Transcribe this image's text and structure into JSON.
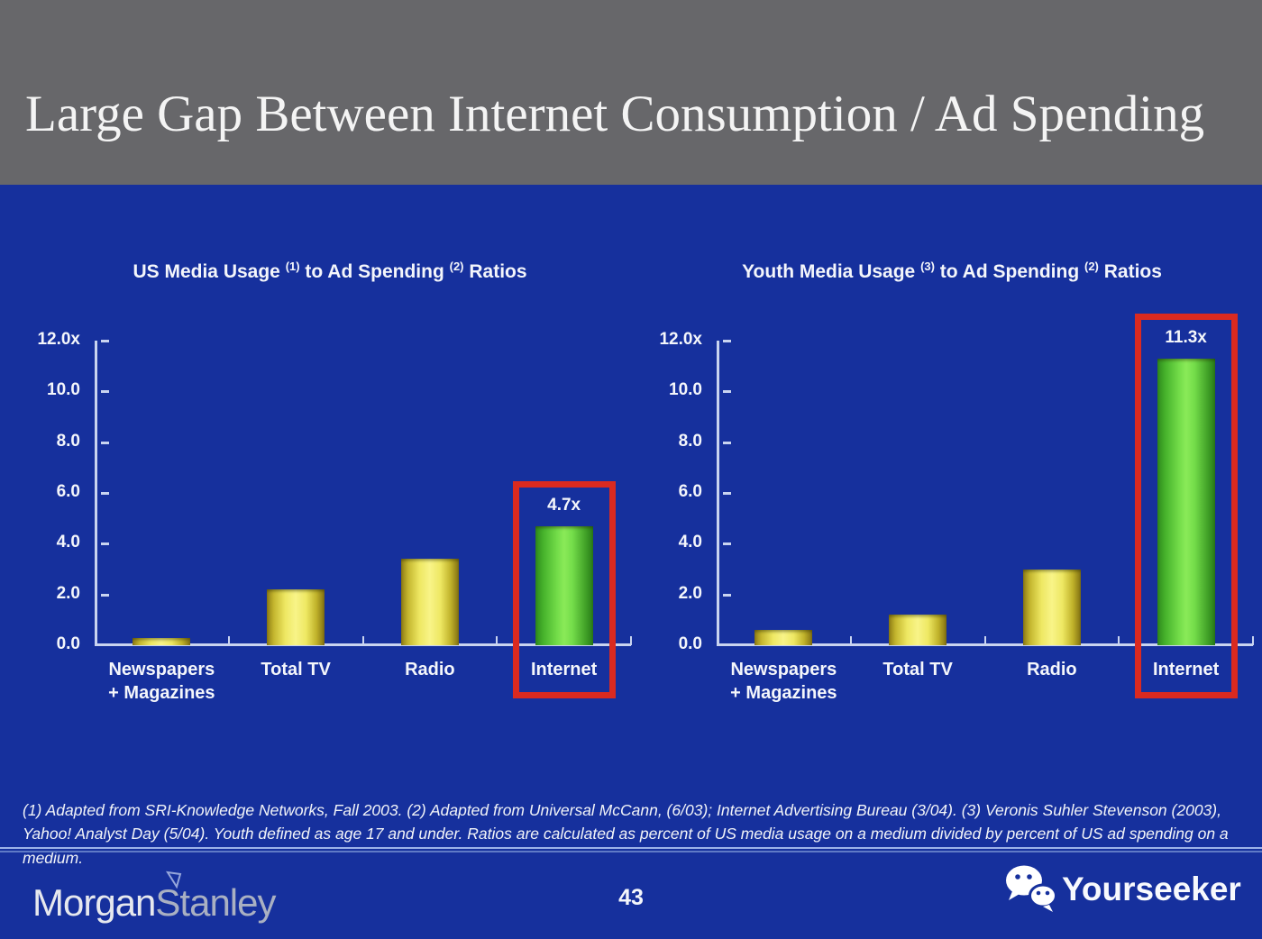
{
  "slide": {
    "title": "Large Gap Between Internet Consumption / Ad Spending",
    "page_number": "43",
    "footnote": "(1) Adapted from SRI-Knowledge Networks, Fall 2003.  (2) Adapted from Universal McCann, (6/03); Internet Advertising Bureau (3/04). (3) Veronis Suhler Stevenson (2003), Yahoo! Analyst Day (5/04).  Youth defined as age 17 and under.  Ratios are calculated as percent of US media usage on a medium divided by percent of US ad spending on a medium."
  },
  "footer": {
    "brand_morgan": "Morgan",
    "brand_stanley": "Stanley",
    "watermark_label": "Yourseeker"
  },
  "colors": {
    "header_gray": "#67676a",
    "slide_blue": "#16309d",
    "axis_light": "#c9d4f0",
    "bar_yellow": "#f6f170",
    "bar_green": "#7ce84f",
    "highlight_red": "#da2a20"
  },
  "chart_data": [
    {
      "type": "bar",
      "title_segments": [
        {
          "text": "US Media Usage "
        },
        {
          "text": "(1)",
          "sup": true
        },
        {
          "text": " to Ad Spending "
        },
        {
          "text": "(2)",
          "sup": true
        },
        {
          "text": " Ratios"
        }
      ],
      "categories": [
        [
          "Newspapers",
          "+ Magazines"
        ],
        [
          "Total TV"
        ],
        [
          "Radio"
        ],
        [
          "Internet"
        ]
      ],
      "values": [
        0.3,
        2.2,
        3.4,
        4.7
      ],
      "bar_colors": [
        "yellow",
        "yellow",
        "yellow",
        "green"
      ],
      "data_labels": [
        null,
        null,
        null,
        "4.7x"
      ],
      "highlight_index": 3,
      "ylim": [
        0,
        12
      ],
      "yticks": {
        "values": [
          12,
          10,
          8,
          6,
          4,
          2,
          0
        ],
        "labels": [
          "12.0x",
          "10.0",
          "8.0",
          "6.0",
          "4.0",
          "2.0",
          "0.0"
        ]
      },
      "grid": false,
      "legend": false
    },
    {
      "type": "bar",
      "title_segments": [
        {
          "text": "Youth Media Usage "
        },
        {
          "text": "(3)",
          "sup": true
        },
        {
          "text": " to Ad Spending "
        },
        {
          "text": "(2)",
          "sup": true
        },
        {
          "text": " Ratios"
        }
      ],
      "categories": [
        [
          "Newspapers",
          "+ Magazines"
        ],
        [
          "Total TV"
        ],
        [
          "Radio"
        ],
        [
          "Internet"
        ]
      ],
      "values": [
        0.6,
        1.2,
        3.0,
        11.3
      ],
      "bar_colors": [
        "yellow",
        "yellow",
        "yellow",
        "green"
      ],
      "data_labels": [
        null,
        null,
        null,
        "11.3x"
      ],
      "highlight_index": 3,
      "ylim": [
        0,
        12
      ],
      "yticks": {
        "values": [
          12,
          10,
          8,
          6,
          4,
          2,
          0
        ],
        "labels": [
          "12.0x",
          "10.0",
          "8.0",
          "6.0",
          "4.0",
          "2.0",
          "0.0"
        ]
      },
      "grid": false,
      "legend": false
    }
  ]
}
